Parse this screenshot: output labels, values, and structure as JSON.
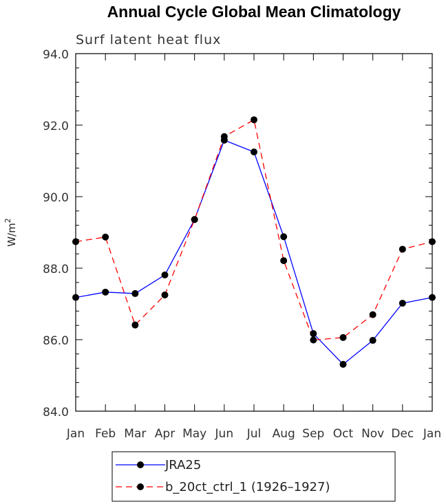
{
  "chart_data": {
    "type": "line",
    "title": "Annual Cycle Global Mean Climatology",
    "subtitle": "Surf latent heat flux",
    "ylabel": "W/m",
    "ylabel_sup": "2",
    "xlabel": "",
    "categories": [
      "Jan",
      "Feb",
      "Mar",
      "Apr",
      "May",
      "Jun",
      "Jul",
      "Aug",
      "Sep",
      "Oct",
      "Nov",
      "Dec",
      "Jan"
    ],
    "ylim": [
      84.0,
      94.0
    ],
    "yticks": [
      "84.0",
      "86.0",
      "88.0",
      "90.0",
      "92.0",
      "94.0"
    ],
    "grid": false,
    "legend_position": "bottom",
    "series": [
      {
        "name": "JRA25",
        "color": "#0000ff",
        "dash": "solid",
        "values": [
          87.18,
          87.33,
          87.29,
          87.81,
          89.36,
          91.58,
          91.25,
          88.88,
          86.17,
          85.31,
          85.98,
          87.02,
          87.18
        ]
      },
      {
        "name": "b_20ct_ctrl_1 (1926–1927)",
        "color": "#ff0000",
        "dash": "dashed",
        "values": [
          88.74,
          88.87,
          86.41,
          87.25,
          89.36,
          91.68,
          92.15,
          88.21,
          85.99,
          86.06,
          86.7,
          88.53,
          88.74
        ]
      }
    ]
  }
}
